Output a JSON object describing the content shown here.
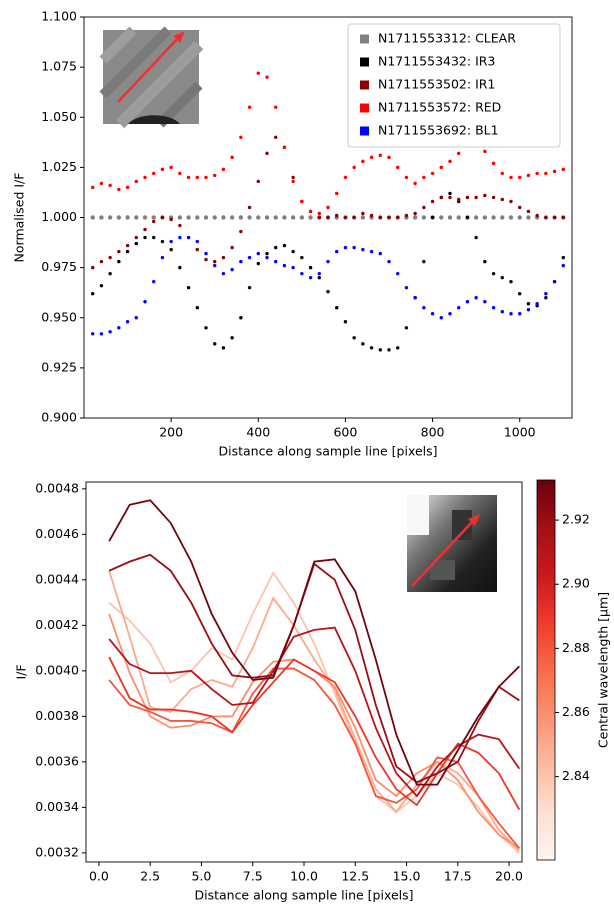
{
  "chart_data": [
    {
      "type": "scatter",
      "xlabel": "Distance along sample line [pixels]",
      "ylabel": "Normalised I/F",
      "x": [
        20,
        40,
        60,
        80,
        100,
        120,
        140,
        160,
        180,
        200,
        220,
        240,
        260,
        280,
        300,
        320,
        340,
        360,
        380,
        400,
        420,
        440,
        460,
        480,
        500,
        520,
        540,
        560,
        580,
        600,
        620,
        640,
        660,
        680,
        700,
        720,
        740,
        760,
        780,
        800,
        820,
        840,
        860,
        880,
        900,
        920,
        940,
        960,
        980,
        1000,
        1020,
        1040,
        1060,
        1080,
        1100
      ],
      "series": [
        {
          "name": "N1711553312: CLEAR",
          "color": "#808080",
          "values": [
            1,
            1,
            1,
            1,
            1,
            1,
            1,
            1,
            1,
            1,
            1,
            1,
            1,
            1,
            1,
            1,
            1,
            1,
            1,
            1,
            1,
            1,
            1,
            1,
            1,
            1,
            1,
            1,
            1,
            1,
            1,
            1,
            1,
            1,
            1,
            1,
            1,
            1,
            1,
            1,
            1,
            1,
            1,
            1,
            1,
            1,
            1,
            1,
            1,
            1,
            1,
            1,
            1,
            1,
            1
          ]
        },
        {
          "name": "N1711553432: IR3",
          "color": "#000000",
          "values": [
            0.962,
            0.966,
            0.972,
            0.978,
            0.983,
            0.987,
            0.99,
            0.99,
            0.988,
            0.984,
            0.975,
            0.965,
            0.955,
            0.945,
            0.937,
            0.935,
            0.94,
            0.95,
            0.965,
            0.977,
            0.982,
            0.985,
            0.986,
            0.983,
            0.98,
            0.975,
            0.97,
            0.963,
            0.955,
            0.948,
            0.94,
            0.937,
            0.935,
            0.934,
            0.934,
            0.935,
            0.945,
            0.96,
            0.978,
            1.0,
            1.01,
            1.012,
            1.008,
            1.0,
            0.99,
            0.978,
            0.972,
            0.97,
            0.968,
            0.962,
            0.957,
            0.956,
            0.96,
            0.968,
            0.98
          ]
        },
        {
          "name": "N1711553502: IR1",
          "color": "#8b0000",
          "values": [
            0.975,
            0.978,
            0.98,
            0.983,
            0.986,
            0.99,
            0.994,
            0.998,
            1.0,
            0.999,
            0.996,
            0.99,
            0.984,
            0.979,
            0.978,
            0.98,
            0.985,
            0.993,
            1.005,
            1.018,
            1.032,
            1.04,
            1.035,
            1.02,
            1.008,
            1.003,
            1.0,
            1.0,
            1.001,
            1.0,
            1.0,
            1.002,
            1.001,
            1.0,
            1.0,
            1.0,
            1.001,
            1.002,
            1.005,
            1.008,
            1.01,
            1.01,
            1.009,
            1.01,
            1.01,
            1.011,
            1.01,
            1.009,
            1.008,
            1.005,
            1.003,
            1.001,
            1.0,
            1.0,
            1.0
          ]
        },
        {
          "name": "N1711553572: RED",
          "color": "#ff0000",
          "values": [
            1.015,
            1.017,
            1.016,
            1.014,
            1.015,
            1.018,
            1.02,
            1.022,
            1.024,
            1.025,
            1.022,
            1.02,
            1.02,
            1.02,
            1.021,
            1.024,
            1.03,
            1.04,
            1.055,
            1.072,
            1.07,
            1.055,
            1.035,
            1.018,
            1.008,
            1.003,
            1.002,
            1.005,
            1.012,
            1.02,
            1.025,
            1.028,
            1.03,
            1.031,
            1.03,
            1.025,
            1.02,
            1.017,
            1.02,
            1.022,
            1.025,
            1.028,
            1.032,
            1.036,
            1.037,
            1.033,
            1.027,
            1.022,
            1.02,
            1.02,
            1.021,
            1.022,
            1.022,
            1.023,
            1.024
          ]
        },
        {
          "name": "N1711553692: BL1",
          "color": "#0000ff",
          "values": [
            0.942,
            0.942,
            0.943,
            0.945,
            0.948,
            0.95,
            0.958,
            0.968,
            0.98,
            0.988,
            0.99,
            0.99,
            0.988,
            0.982,
            0.976,
            0.972,
            0.974,
            0.978,
            0.98,
            0.982,
            0.98,
            0.978,
            0.976,
            0.975,
            0.972,
            0.97,
            0.972,
            0.978,
            0.983,
            0.985,
            0.985,
            0.984,
            0.983,
            0.982,
            0.978,
            0.972,
            0.965,
            0.96,
            0.955,
            0.952,
            0.95,
            0.952,
            0.955,
            0.958,
            0.96,
            0.958,
            0.955,
            0.953,
            0.952,
            0.952,
            0.954,
            0.957,
            0.962,
            0.968,
            0.976
          ]
        }
      ],
      "xlim": [
        0,
        1120
      ],
      "ylim": [
        0.9,
        1.1
      ],
      "xticks": [
        200,
        400,
        600,
        800,
        1000
      ],
      "yticks": [
        {
          "value": 0.9,
          "label": "0.900"
        },
        {
          "value": 0.925,
          "label": "0.925"
        },
        {
          "value": 0.95,
          "label": "0.950"
        },
        {
          "value": 0.975,
          "label": "0.975"
        },
        {
          "value": 1.0,
          "label": "1.000"
        },
        {
          "value": 1.025,
          "label": "1.025"
        },
        {
          "value": 1.05,
          "label": "1.050"
        },
        {
          "value": 1.075,
          "label": "1.075"
        },
        {
          "value": 1.1,
          "label": "1.100"
        }
      ],
      "legend": "upper right"
    },
    {
      "type": "line",
      "xlabel": "Distance along sample line [pixels]",
      "ylabel": "I/F",
      "colorbar_label": "Central wavelength [μm]",
      "colormap": "Reds",
      "x": [
        0.5,
        1.5,
        2.5,
        3.5,
        4.5,
        5.5,
        6.5,
        7.5,
        8.5,
        9.5,
        10.5,
        11.5,
        12.5,
        13.5,
        14.5,
        15.5,
        16.5,
        17.5,
        18.5,
        19.5,
        20.5
      ],
      "series": [
        {
          "wavelength": 2.84,
          "values": [
            0.0043,
            0.00422,
            0.00412,
            0.00395,
            0.004,
            0.0041,
            0.00405,
            0.00425,
            0.00443,
            0.0043,
            0.00412,
            0.0039,
            0.00368,
            0.00345,
            0.00338,
            0.00345,
            0.00355,
            0.0035,
            0.0034,
            0.00328,
            0.0032
          ]
        },
        {
          "wavelength": 2.85,
          "values": [
            0.00444,
            0.00415,
            0.00384,
            0.00382,
            0.00392,
            0.00396,
            0.00393,
            0.0041,
            0.00432,
            0.0042,
            0.00405,
            0.00392,
            0.0037,
            0.00348,
            0.00338,
            0.0035,
            0.0036,
            0.00355,
            0.00345,
            0.0033,
            0.00321
          ]
        },
        {
          "wavelength": 2.86,
          "values": [
            0.00425,
            0.00399,
            0.0038,
            0.00375,
            0.00376,
            0.0038,
            0.0038,
            0.00395,
            0.00404,
            0.00405,
            0.004,
            0.00393,
            0.00375,
            0.00352,
            0.00345,
            0.00355,
            0.0036,
            0.00352,
            0.00338,
            0.00328,
            0.00322
          ]
        },
        {
          "wavelength": 2.88,
          "values": [
            0.00396,
            0.00385,
            0.00382,
            0.00378,
            0.00378,
            0.00377,
            0.00373,
            0.0039,
            0.00401,
            0.00401,
            0.00396,
            0.00385,
            0.00368,
            0.00345,
            0.00342,
            0.00348,
            0.00362,
            0.0036,
            0.00345,
            0.00333,
            0.00322
          ]
        },
        {
          "wavelength": 2.89,
          "values": [
            0.00406,
            0.00388,
            0.00383,
            0.00383,
            0.00382,
            0.0038,
            0.00373,
            0.00385,
            0.00395,
            0.00405,
            0.004,
            0.00395,
            0.0038,
            0.00362,
            0.00348,
            0.00341,
            0.00355,
            0.00368,
            0.00364,
            0.00355,
            0.00339
          ]
        },
        {
          "wavelength": 2.91,
          "values": [
            0.00414,
            0.00403,
            0.00399,
            0.00399,
            0.004,
            0.00392,
            0.00385,
            0.00386,
            0.004,
            0.00415,
            0.00418,
            0.00419,
            0.004,
            0.00375,
            0.00355,
            0.00345,
            0.00358,
            0.00367,
            0.00372,
            0.0037,
            0.00357
          ]
        },
        {
          "wavelength": 2.92,
          "values": [
            0.00444,
            0.00448,
            0.00451,
            0.00444,
            0.0043,
            0.00412,
            0.00398,
            0.00397,
            0.00398,
            0.0042,
            0.00447,
            0.0044,
            0.00418,
            0.00385,
            0.00358,
            0.00351,
            0.00355,
            0.0036,
            0.00378,
            0.00393,
            0.00387
          ]
        },
        {
          "wavelength": 2.93,
          "values": [
            0.00457,
            0.00473,
            0.00475,
            0.00465,
            0.00448,
            0.00425,
            0.00408,
            0.00396,
            0.00397,
            0.0042,
            0.00448,
            0.00449,
            0.00435,
            0.00405,
            0.00372,
            0.0035,
            0.0035,
            0.00365,
            0.0038,
            0.00393,
            0.00402
          ]
        }
      ],
      "xlim": [
        -0.63,
        20.63
      ],
      "ylim": [
        0.00316,
        0.00483
      ],
      "xticks": [
        {
          "value": 0,
          "label": "0.0"
        },
        2.5,
        {
          "value": 5,
          "label": "5.0"
        },
        7.5,
        {
          "value": 10,
          "label": "10.0"
        },
        12.5,
        {
          "value": 15,
          "label": "15.0"
        },
        17.5,
        {
          "value": 20,
          "label": "20.0"
        }
      ],
      "yticks": [
        0.0032,
        0.0034,
        0.0036,
        0.0038,
        {
          "value": 0.004,
          "label": "0.0040"
        },
        0.0042,
        0.0044,
        0.0046,
        0.0048
      ],
      "zlim": [
        2.814,
        2.9325
      ],
      "zticks": [
        2.84,
        2.86,
        2.88,
        {
          "value": 2.9,
          "label": "2.90"
        },
        2.92
      ]
    }
  ]
}
